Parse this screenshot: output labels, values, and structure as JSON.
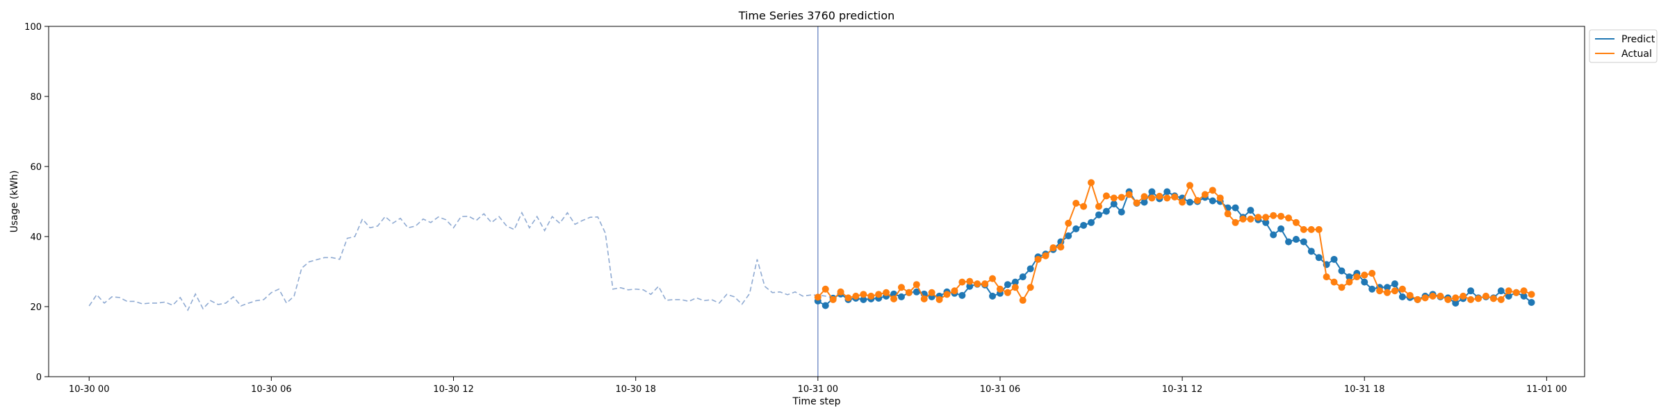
{
  "chart_data": {
    "type": "line",
    "title": "Time Series 3760 prediction",
    "xlabel": "Time step",
    "ylabel": "Usage (kWh)",
    "ylim": [
      0,
      100
    ],
    "xlim": [
      "10-29 22:40",
      "11-01 01:15"
    ],
    "yticks": [
      0,
      20,
      40,
      60,
      80,
      100
    ],
    "xticks": [
      "10-30 00",
      "10-30 06",
      "10-30 12",
      "10-30 18",
      "10-31 00",
      "10-31 06",
      "10-31 12",
      "10-31 18",
      "11-01 00"
    ],
    "grid": false,
    "legend": {
      "position": "outside-top-right",
      "entries": [
        "Predict",
        "Actual"
      ]
    },
    "vertical_line_at": "10-31 00:00",
    "interval_minutes": 15,
    "history": {
      "start": "10-30 00:00",
      "color": "#8faad2",
      "style": "dashed",
      "values": [
        20.2,
        23.4,
        21.0,
        22.8,
        22.6,
        21.5,
        21.5,
        20.8,
        21.0,
        21.0,
        21.3,
        20.4,
        22.6,
        19.0,
        23.6,
        19.4,
        21.7,
        20.6,
        21.0,
        22.8,
        20.2,
        21.0,
        21.7,
        22.0,
        24.0,
        25.0,
        21.0,
        23.0,
        31.0,
        32.8,
        33.4,
        34.0,
        34.0,
        33.5,
        39.5,
        40.0,
        45.0,
        42.5,
        43.0,
        45.7,
        43.8,
        45.2,
        42.5,
        43.0,
        45.0,
        44.0,
        45.6,
        44.8,
        42.5,
        45.7,
        45.8,
        44.6,
        46.5,
        44.0,
        45.7,
        43.0,
        42.0,
        46.8,
        42.5,
        45.7,
        41.7,
        45.7,
        43.8,
        46.8,
        43.5,
        44.6,
        45.5,
        45.6,
        41.0,
        25.0,
        25.4,
        24.8,
        25.0,
        24.8,
        23.5,
        25.8,
        21.8,
        22.0,
        22.0,
        21.5,
        22.5,
        21.7,
        22.0,
        21.0,
        23.5,
        22.8,
        20.7,
        23.7,
        33.5,
        25.8,
        24.0,
        24.2,
        23.4,
        24.2,
        23.0,
        23.3,
        23.3,
        23.0,
        22.6
      ]
    },
    "series": [
      {
        "name": "Predict",
        "color": "#1f77b4",
        "start": "10-31 00:00",
        "values": [
          21.6,
          20.3,
          22.4,
          23.6,
          22.0,
          22.4,
          22.0,
          22.2,
          22.4,
          23.0,
          23.6,
          22.8,
          24.0,
          24.2,
          23.6,
          22.8,
          23.0,
          24.2,
          23.8,
          23.2,
          25.8,
          26.4,
          26.2,
          23.0,
          23.8,
          26.3,
          27.0,
          28.5,
          30.8,
          34.2,
          35.0,
          36.3,
          38.5,
          40.2,
          42.2,
          43.2,
          44.0,
          46.2,
          47.2,
          49.3,
          47.0,
          52.8,
          49.5,
          49.8,
          52.8,
          50.8,
          52.8,
          51.6,
          51.0,
          49.8,
          50.0,
          51.2,
          50.2,
          50.0,
          48.2,
          48.2,
          45.5,
          47.5,
          44.8,
          44.0,
          40.5,
          42.2,
          38.5,
          39.2,
          38.5,
          35.8,
          34.0,
          32.0,
          33.5,
          30.2,
          28.5,
          29.5,
          27.0,
          25.0,
          25.5,
          25.5,
          26.5,
          22.8,
          22.6,
          22.0,
          23.0,
          23.5,
          22.8,
          22.5,
          21.0,
          22.3,
          24.5,
          22.5,
          22.8,
          22.5,
          24.5,
          23.0,
          24.0,
          23.0,
          21.2
        ]
      },
      {
        "name": "Actual",
        "color": "#ff7f0e",
        "start": "10-31 00:00",
        "values": [
          22.7,
          25.0,
          22.0,
          24.2,
          22.5,
          23.0,
          23.5,
          23.0,
          23.5,
          24.0,
          22.2,
          25.5,
          24.0,
          26.3,
          22.2,
          24.0,
          22.0,
          23.5,
          24.5,
          27.0,
          27.2,
          26.5,
          26.5,
          28.0,
          25.0,
          24.0,
          25.5,
          21.8,
          25.5,
          33.5,
          34.5,
          36.8,
          37.0,
          43.8,
          49.5,
          48.6,
          55.4,
          48.6,
          51.6,
          51.0,
          51.2,
          52.0,
          49.6,
          51.4,
          51.0,
          51.5,
          51.0,
          51.3,
          49.8,
          54.6,
          50.3,
          52.0,
          53.2,
          51.0,
          46.5,
          44.0,
          45.0,
          45.0,
          45.5,
          45.5,
          46.0,
          45.8,
          45.3,
          44.0,
          42.0,
          42.0,
          42.0,
          28.5,
          27.0,
          25.5,
          27.0,
          28.5,
          29.0,
          29.5,
          24.5,
          24.0,
          24.5,
          25.0,
          23.2,
          22.0,
          22.5,
          23.0,
          23.0,
          22.0,
          22.5,
          23.0,
          22.0,
          22.3,
          23.0,
          22.3,
          22.0,
          24.5,
          24.0,
          24.5,
          23.5
        ]
      }
    ]
  }
}
